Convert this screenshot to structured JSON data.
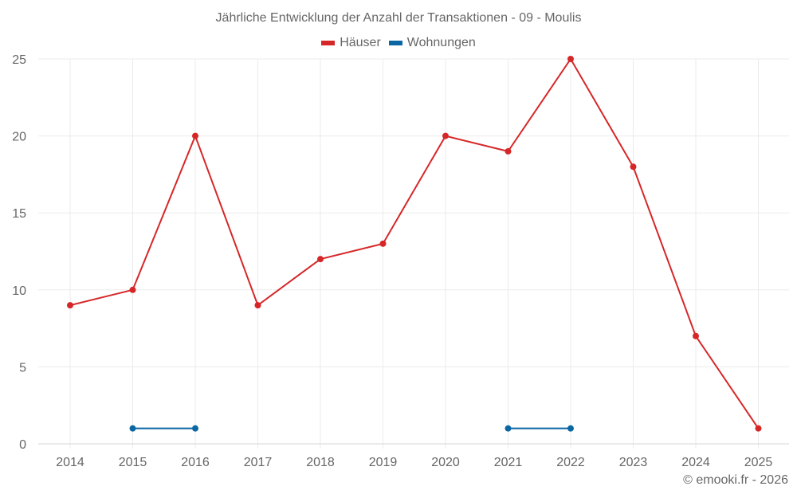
{
  "chart_data": {
    "type": "line",
    "title": "Jährliche Entwicklung der Anzahl der Transaktionen - 09 - Moulis",
    "xlabel": "",
    "ylabel": "",
    "ylim": [
      0,
      25
    ],
    "yticks": [
      0,
      5,
      10,
      15,
      20,
      25
    ],
    "grid": true,
    "legend_position": "top",
    "categories": [
      "2014",
      "2015",
      "2016",
      "2017",
      "2018",
      "2019",
      "2020",
      "2021",
      "2022",
      "2023",
      "2024",
      "2025"
    ],
    "series": [
      {
        "name": "Häuser",
        "color": "#d62728",
        "values": [
          9,
          10,
          20,
          9,
          12,
          13,
          20,
          19,
          25,
          18,
          7,
          1
        ]
      },
      {
        "name": "Wohnungen",
        "color": "#0a67a3",
        "values": [
          null,
          1,
          1,
          null,
          null,
          null,
          null,
          1,
          1,
          null,
          null,
          null
        ]
      }
    ]
  },
  "credit": "© emooki.fr - 2026"
}
